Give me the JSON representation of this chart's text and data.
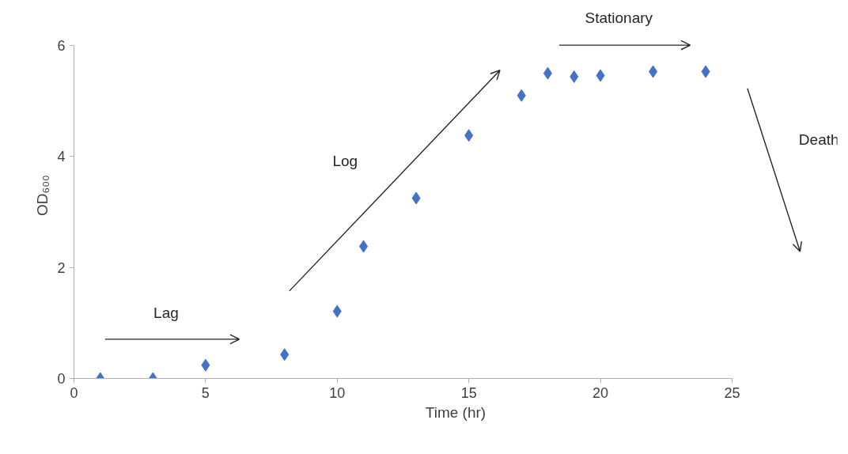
{
  "chart_data": {
    "type": "scatter",
    "xlabel": "Time (hr)",
    "ylabel": "OD₆₀₀",
    "x": [
      1,
      3,
      5,
      8,
      10,
      11,
      13,
      15,
      17,
      18,
      19,
      20,
      22,
      24
    ],
    "series": [
      {
        "color": "#4472c4",
        "values": [
          0.0,
          0.0,
          0.24,
          0.43,
          1.21,
          2.38,
          3.25,
          4.38,
          5.1,
          5.5,
          5.44,
          5.46,
          5.53,
          5.53
        ]
      }
    ],
    "xlim": [
      0,
      25
    ],
    "ylim": [
      0,
      6
    ],
    "xticks": [
      0,
      5,
      10,
      15,
      20,
      25
    ],
    "yticks": [
      0,
      2,
      4,
      6
    ],
    "marker": "diamond",
    "grid": false,
    "annotations": [
      "Lag",
      "Log",
      "Stationary",
      "Death"
    ]
  }
}
